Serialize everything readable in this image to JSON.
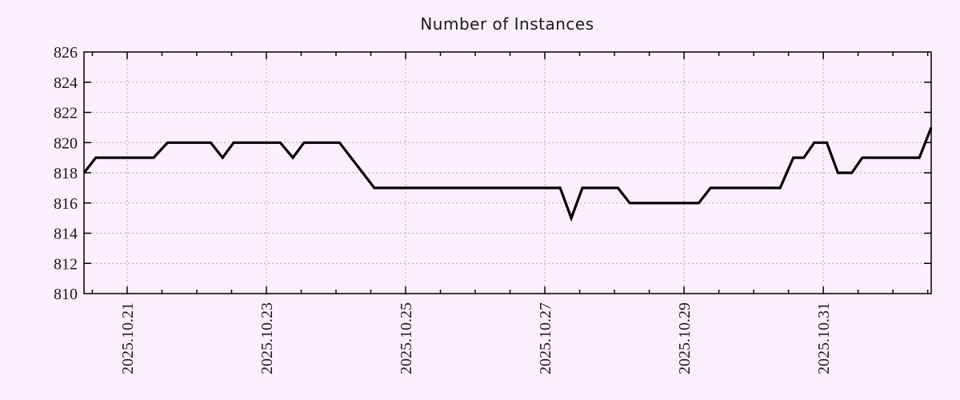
{
  "chart_data": {
    "type": "line",
    "title": "Number of Instances",
    "xlabel": "",
    "ylabel": "",
    "ylim": [
      810,
      826
    ],
    "y_ticks": [
      810,
      812,
      814,
      816,
      818,
      820,
      822,
      824,
      826
    ],
    "x_range_days": [
      -0.62,
      11.55
    ],
    "x_tick_positions_days": [
      0,
      2,
      4,
      6,
      8,
      10
    ],
    "x_tick_labels": [
      "2025.10.21",
      "2025.10.23",
      "2025.10.25",
      "2025.10.27",
      "2025.10.29",
      "2025.10.31"
    ],
    "x_minor_tick_interval_days": 0.5,
    "grid": true,
    "legend": "none",
    "colors": {
      "background": "#fbeffb",
      "line": "#000000",
      "grid": "#b3a6b3",
      "border": "#000000",
      "text": "#1a1a1a"
    },
    "series": [
      {
        "points": [
          [
            -0.62,
            818
          ],
          [
            -0.45,
            819
          ],
          [
            0.38,
            819
          ],
          [
            0.58,
            820
          ],
          [
            1.2,
            820
          ],
          [
            1.37,
            819
          ],
          [
            1.53,
            820
          ],
          [
            2.2,
            820
          ],
          [
            2.38,
            819
          ],
          [
            2.54,
            820
          ],
          [
            3.05,
            820
          ],
          [
            3.55,
            817
          ],
          [
            6.22,
            817
          ],
          [
            6.38,
            815
          ],
          [
            6.54,
            817
          ],
          [
            7.05,
            817
          ],
          [
            7.22,
            816
          ],
          [
            8.21,
            816
          ],
          [
            8.38,
            817
          ],
          [
            9.38,
            817
          ],
          [
            9.57,
            819
          ],
          [
            9.72,
            819
          ],
          [
            9.87,
            820
          ],
          [
            10.05,
            820
          ],
          [
            10.21,
            818
          ],
          [
            10.41,
            818
          ],
          [
            10.56,
            819
          ],
          [
            11.38,
            819
          ],
          [
            11.55,
            821
          ]
        ]
      }
    ]
  }
}
